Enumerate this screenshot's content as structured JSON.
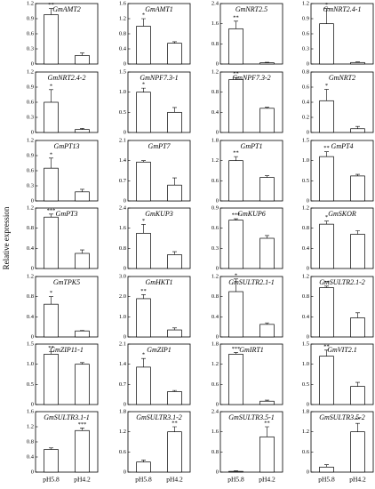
{
  "ylabel": "Relative expression",
  "chart_data": [
    {
      "type": "bar",
      "title": "GmAMT2",
      "categories": [
        null,
        null
      ],
      "values": [
        0.98,
        0.17
      ],
      "errors": [
        0.12,
        0.05
      ],
      "significance": [
        "**",
        null
      ],
      "ylim": [
        0,
        1.2
      ],
      "yticks": [
        0,
        0.3,
        0.6,
        0.9,
        1.2
      ],
      "color": "#ffffff"
    },
    {
      "type": "bar",
      "title": "GmAMT1",
      "categories": [
        null,
        null
      ],
      "values": [
        1.0,
        0.55
      ],
      "errors": [
        0.2,
        0.04
      ],
      "significance": [
        "*",
        null
      ],
      "ylim": [
        0,
        1.6
      ],
      "yticks": [
        0,
        0.4,
        0.8,
        1.2,
        1.6
      ],
      "color": "#ffffff"
    },
    {
      "type": "bar",
      "title": "GmNRT2.5",
      "categories": [
        null,
        null
      ],
      "values": [
        1.4,
        0.05
      ],
      "errors": [
        0.3,
        0.02
      ],
      "significance": [
        "**",
        null
      ],
      "ylim": [
        0,
        2.4
      ],
      "yticks": [
        0,
        0.8,
        1.6,
        2.4
      ],
      "color": "#ffffff"
    },
    {
      "type": "bar",
      "title": "GmNRT2.4-1",
      "categories": [
        null,
        null
      ],
      "values": [
        0.8,
        0.03
      ],
      "errors": [
        0.3,
        0.01
      ],
      "significance": [
        "*",
        null
      ],
      "ylim": [
        0,
        1.2
      ],
      "yticks": [
        0,
        0.3,
        0.6,
        0.9,
        1.2
      ],
      "color": "#ffffff"
    },
    {
      "type": "bar",
      "title": "GmNRT2.4-2",
      "categories": [
        null,
        null
      ],
      "values": [
        0.6,
        0.06
      ],
      "errors": [
        0.25,
        0.02
      ],
      "significance": [
        "*",
        null
      ],
      "ylim": [
        0,
        1.2
      ],
      "yticks": [
        0,
        0.3,
        0.6,
        0.9,
        1.2
      ],
      "color": "#ffffff"
    },
    {
      "type": "bar",
      "title": "GmNPF7.3-1",
      "categories": [
        null,
        null
      ],
      "values": [
        1.0,
        0.5
      ],
      "errors": [
        0.1,
        0.12
      ],
      "significance": [
        "*",
        null
      ],
      "ylim": [
        0,
        1.5
      ],
      "yticks": [
        0,
        0.5,
        {
          "value": 1,
          "label": "1.0"
        },
        1.5
      ],
      "color": "#ffffff"
    },
    {
      "type": "bar",
      "title": "GmNPF7.3-2",
      "categories": [
        null,
        null
      ],
      "values": [
        1.05,
        0.48
      ],
      "errors": [
        0.04,
        0.02
      ],
      "significance": [
        "**",
        null
      ],
      "ylim": [
        0,
        1.2
      ],
      "yticks": [
        0,
        0.4,
        0.8,
        1.2
      ],
      "color": "#ffffff"
    },
    {
      "type": "bar",
      "title": "GmNRT2",
      "categories": [
        null,
        null
      ],
      "values": [
        0.42,
        0.05
      ],
      "errors": [
        0.15,
        0.03
      ],
      "significance": [
        "*",
        null
      ],
      "ylim": [
        0,
        0.8
      ],
      "yticks": [
        0,
        0.2,
        0.4,
        0.6,
        0.8
      ],
      "color": "#ffffff"
    },
    {
      "type": "bar",
      "title": "GmPT13",
      "categories": [
        null,
        null
      ],
      "values": [
        0.65,
        0.18
      ],
      "errors": [
        0.2,
        0.05
      ],
      "significance": [
        "*",
        null
      ],
      "ylim": [
        0,
        1.2
      ],
      "yticks": [
        0,
        0.3,
        0.6,
        0.9,
        1.2
      ],
      "color": "#ffffff"
    },
    {
      "type": "bar",
      "title": "GmPT7",
      "categories": [
        null,
        null
      ],
      "values": [
        1.35,
        0.55
      ],
      "errors": [
        0.05,
        0.25
      ],
      "significance": [
        null,
        null
      ],
      "ylim": [
        0,
        2.1
      ],
      "yticks": [
        0,
        0.7,
        1.4,
        2.1
      ],
      "color": "#ffffff"
    },
    {
      "type": "bar",
      "title": "GmPT1",
      "categories": [
        null,
        null
      ],
      "values": [
        1.2,
        0.7
      ],
      "errors": [
        0.12,
        0.05
      ],
      "significance": [
        "**",
        null
      ],
      "ylim": [
        0,
        1.8
      ],
      "yticks": [
        0,
        0.6,
        1.2,
        1.8
      ],
      "color": "#ffffff"
    },
    {
      "type": "bar",
      "title": "GmPT4",
      "categories": [
        null,
        null
      ],
      "values": [
        1.1,
        0.62
      ],
      "errors": [
        0.12,
        0.04
      ],
      "significance": [
        "**",
        null
      ],
      "ylim": [
        0,
        1.5
      ],
      "yticks": [
        0,
        0.5,
        {
          "value": 1,
          "label": "1.0"
        },
        1.5
      ],
      "color": "#ffffff"
    },
    {
      "type": "bar",
      "title": "GmPT3",
      "categories": [
        null,
        null
      ],
      "values": [
        1.02,
        0.3
      ],
      "errors": [
        0.06,
        0.07
      ],
      "significance": [
        "***",
        null
      ],
      "ylim": [
        0,
        1.2
      ],
      "yticks": [
        0,
        0.4,
        0.8,
        1.2
      ],
      "color": "#ffffff"
    },
    {
      "type": "bar",
      "title": "GmKUP3",
      "categories": [
        null,
        null
      ],
      "values": [
        1.4,
        0.55
      ],
      "errors": [
        0.35,
        0.12
      ],
      "significance": [
        "*",
        null
      ],
      "ylim": [
        0,
        2.4
      ],
      "yticks": [
        0,
        0.8,
        1.6,
        2.4
      ],
      "color": "#ffffff"
    },
    {
      "type": "bar",
      "title": "GmKUP6",
      "categories": [
        null,
        null
      ],
      "values": [
        0.72,
        0.45
      ],
      "errors": [
        0.02,
        0.04
      ],
      "significance": [
        "***",
        null
      ],
      "ylim": [
        0,
        0.9
      ],
      "yticks": [
        0,
        0.3,
        0.6,
        0.9
      ],
      "color": "#ffffff"
    },
    {
      "type": "bar",
      "title": "GmSKOR",
      "categories": [
        null,
        null
      ],
      "values": [
        0.88,
        0.68
      ],
      "errors": [
        0.06,
        0.07
      ],
      "significance": [
        "*",
        null
      ],
      "ylim": [
        0,
        1.2
      ],
      "yticks": [
        0,
        0.4,
        0.8,
        1.2
      ],
      "color": "#ffffff"
    },
    {
      "type": "bar",
      "title": "GmTPK5",
      "categories": [
        null,
        null
      ],
      "values": [
        0.65,
        0.12
      ],
      "errors": [
        0.15,
        0.01
      ],
      "significance": [
        "*",
        null
      ],
      "ylim": [
        0,
        1.2
      ],
      "yticks": [
        0,
        0.4,
        0.8,
        1.2
      ],
      "color": "#ffffff"
    },
    {
      "type": "bar",
      "title": "GmHKT1",
      "categories": [
        null,
        null
      ],
      "values": [
        1.9,
        0.35
      ],
      "errors": [
        0.2,
        0.1
      ],
      "significance": [
        "**",
        null
      ],
      "ylim": [
        0,
        3
      ],
      "yticks": [
        0,
        {
          "value": 1,
          "label": "1.0"
        },
        {
          "value": 2,
          "label": "2.0"
        },
        {
          "value": 3,
          "label": "3.0"
        }
      ],
      "color": "#ffffff"
    },
    {
      "type": "bar",
      "title": "GmSULTR2.1-1",
      "categories": [
        null,
        null
      ],
      "values": [
        0.9,
        0.25
      ],
      "errors": [
        0.25,
        0.03
      ],
      "significance": [
        "*",
        null
      ],
      "ylim": [
        0,
        1.2
      ],
      "yticks": [
        0,
        0.4,
        0.8,
        1.2
      ],
      "color": "#ffffff"
    },
    {
      "type": "bar",
      "title": "GmSULTR2.1-2",
      "categories": [
        null,
        null
      ],
      "values": [
        0.98,
        0.38
      ],
      "errors": [
        0.03,
        0.1
      ],
      "significance": [
        "**",
        null
      ],
      "ylim": [
        0,
        1.2
      ],
      "yticks": [
        0,
        0.4,
        0.8,
        1.2
      ],
      "color": "#ffffff"
    },
    {
      "type": "bar",
      "title": "GmZIP11-1",
      "categories": [
        null,
        null
      ],
      "values": [
        1.25,
        1.0
      ],
      "errors": [
        0.06,
        0.04
      ],
      "significance": [
        "**",
        null
      ],
      "ylim": [
        0,
        1.5
      ],
      "yticks": [
        0,
        0.5,
        {
          "value": 1,
          "label": "1.0"
        },
        1.5
      ],
      "color": "#ffffff"
    },
    {
      "type": "bar",
      "title": "GmZIP1",
      "categories": [
        null,
        null
      ],
      "values": [
        1.3,
        0.45
      ],
      "errors": [
        0.3,
        0.04
      ],
      "significance": [
        "*",
        null
      ],
      "ylim": [
        0,
        2.1
      ],
      "yticks": [
        0,
        0.7,
        1.4,
        2.1
      ],
      "color": "#ffffff"
    },
    {
      "type": "bar",
      "title": "GmIRT1",
      "categories": [
        null,
        null
      ],
      "values": [
        1.5,
        0.1
      ],
      "errors": [
        0.05,
        0.03
      ],
      "significance": [
        "***",
        null
      ],
      "ylim": [
        0,
        1.8
      ],
      "yticks": [
        0,
        0.6,
        1.2,
        1.8
      ],
      "color": "#ffffff"
    },
    {
      "type": "bar",
      "title": "GmVIT2.1",
      "categories": [
        null,
        null
      ],
      "values": [
        1.2,
        0.45
      ],
      "errors": [
        0.15,
        0.1
      ],
      "significance": [
        "**",
        null
      ],
      "ylim": [
        0,
        1.5
      ],
      "yticks": [
        0,
        0.5,
        {
          "value": 1,
          "label": "1.0"
        },
        1.5
      ],
      "color": "#ffffff"
    },
    {
      "type": "bar",
      "title": "GmSULTR3.1-1",
      "categories": [
        "pH5.8",
        "pH4.2"
      ],
      "values": [
        0.6,
        1.1
      ],
      "errors": [
        0.04,
        0.07
      ],
      "significance": [
        null,
        "***"
      ],
      "ylim": [
        0,
        1.6
      ],
      "yticks": [
        0,
        0.4,
        0.8,
        1.2,
        1.6
      ],
      "color": "#ffffff"
    },
    {
      "type": "bar",
      "title": "GmSULTR3.1-2",
      "categories": [
        "pH5.8",
        "pH4.2"
      ],
      "values": [
        0.3,
        1.2
      ],
      "errors": [
        0.06,
        0.15
      ],
      "significance": [
        null,
        "**"
      ],
      "ylim": [
        0,
        1.8
      ],
      "yticks": [
        0,
        0.6,
        1.2,
        1.8
      ],
      "color": "#ffffff"
    },
    {
      "type": "bar",
      "title": "GmSULTR3.5-1",
      "categories": [
        "pH5.8",
        "pH4.2"
      ],
      "values": [
        0.03,
        1.4
      ],
      "errors": [
        0.02,
        0.4
      ],
      "significance": [
        null,
        "**"
      ],
      "ylim": [
        0,
        2.4
      ],
      "yticks": [
        0,
        0.8,
        1.6,
        2.4
      ],
      "color": "#ffffff"
    },
    {
      "type": "bar",
      "title": "GmSULTR3.5-2",
      "categories": [
        "pH5.8",
        "pH4.2"
      ],
      "values": [
        0.15,
        1.2
      ],
      "errors": [
        0.07,
        0.25
      ],
      "significance": [
        null,
        "**"
      ],
      "ylim": [
        0,
        1.8
      ],
      "yticks": [
        0,
        0.6,
        1.2,
        1.8
      ],
      "color": "#ffffff"
    }
  ]
}
